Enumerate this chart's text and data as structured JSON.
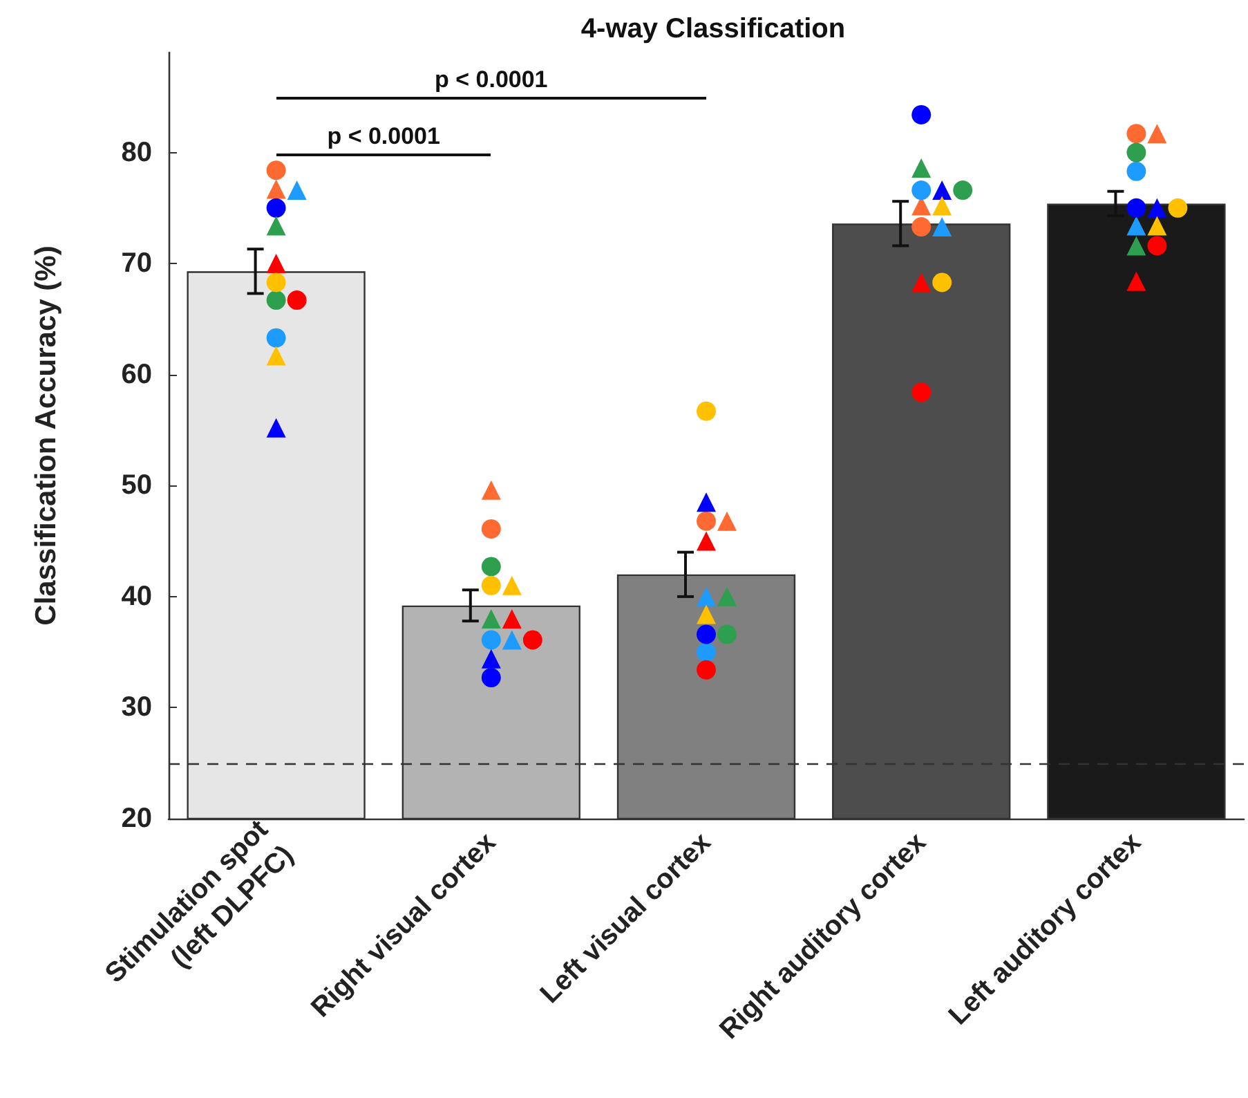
{
  "chart_data": {
    "type": "bar",
    "title": "4-way Classification",
    "ylabel": "Classification Accuracy (%)",
    "categories": [
      "Stimulation spot\n(left DLPFC)",
      "Right visual cortex",
      "Left visual cortex",
      "Right auditory cortex",
      "Left auditory cortex"
    ],
    "ylim": [
      20,
      89
    ],
    "yticks": [
      20,
      30,
      40,
      50,
      60,
      70,
      80
    ],
    "annotations": [
      "p < 0.0001",
      "p < 0.0001"
    ],
    "ref_lines": [
      {
        "axis": "y",
        "value": 25,
        "color": "#333333",
        "line_style": "dashed"
      }
    ],
    "series": [
      {
        "type": "bar",
        "values": [
          69.3,
          39.2,
          42.0,
          73.6,
          75.4
        ],
        "errors": [
          2.0,
          1.4,
          2.0,
          2.0,
          1.1
        ],
        "colors": [
          "#e6e6e6",
          "#b3b3b3",
          "#808080",
          "#4d4d4d",
          "#1a1a1a"
        ]
      },
      {
        "type": "scatter",
        "marker": "circle",
        "color": "#ff6a33",
        "x": [
          "Stimulation spot\n(left DLPFC)",
          "Right visual cortex",
          "Left visual cortex",
          "Right auditory cortex",
          "Left auditory cortex"
        ],
        "values": [
          78.4,
          46.1,
          46.8,
          73.3,
          81.7
        ]
      },
      {
        "type": "scatter",
        "marker": "triangle",
        "color": "#ff6a33",
        "x": [
          "Stimulation spot\n(left DLPFC)",
          "Right visual cortex",
          "Left visual cortex",
          "Right auditory cortex",
          "Left auditory cortex"
        ],
        "values": [
          76.7,
          49.6,
          46.8,
          75.2,
          81.7
        ]
      },
      {
        "type": "scatter",
        "marker": "circle",
        "color": "#1e9bff",
        "x": [
          "Stimulation spot\n(left DLPFC)",
          "Right visual cortex",
          "Left visual cortex",
          "Right auditory cortex",
          "Left auditory cortex"
        ],
        "values": [
          63.3,
          36.1,
          35.0,
          76.6,
          78.3
        ]
      },
      {
        "type": "scatter",
        "marker": "triangle",
        "color": "#1e9bff",
        "x": [
          "Stimulation spot\n(left DLPFC)",
          "Right visual cortex",
          "Left visual cortex",
          "Right auditory cortex",
          "Left auditory cortex"
        ],
        "values": [
          76.6,
          36.1,
          40.0,
          73.3,
          73.4
        ]
      },
      {
        "type": "scatter",
        "marker": "circle",
        "color": "#0000ff",
        "x": [
          "Stimulation spot\n(left DLPFC)",
          "Right visual cortex",
          "Left visual cortex",
          "Right auditory cortex",
          "Left auditory cortex"
        ],
        "values": [
          75.0,
          32.7,
          36.6,
          83.4,
          75.0
        ]
      },
      {
        "type": "scatter",
        "marker": "triangle",
        "color": "#0000ff",
        "x": [
          "Stimulation spot\n(left DLPFC)",
          "Right visual cortex",
          "Left visual cortex",
          "Right auditory cortex",
          "Left auditory cortex"
        ],
        "values": [
          55.2,
          34.4,
          48.5,
          76.6,
          75.0
        ]
      },
      {
        "type": "scatter",
        "marker": "circle",
        "color": "#2e9e4f",
        "x": [
          "Stimulation spot\n(left DLPFC)",
          "Right visual cortex",
          "Left visual cortex",
          "Right auditory cortex",
          "Left auditory cortex"
        ],
        "values": [
          66.7,
          42.7,
          36.6,
          76.6,
          80.0
        ]
      },
      {
        "type": "scatter",
        "marker": "triangle",
        "color": "#2e9e4f",
        "x": [
          "Stimulation spot\n(left DLPFC)",
          "Right visual cortex",
          "Left visual cortex",
          "Right auditory cortex",
          "Left auditory cortex"
        ],
        "values": [
          73.4,
          38.0,
          40.0,
          78.6,
          71.6
        ]
      },
      {
        "type": "scatter",
        "marker": "circle",
        "color": "#ff0000",
        "x": [
          "Stimulation spot\n(left DLPFC)",
          "Right visual cortex",
          "Left visual cortex",
          "Right auditory cortex",
          "Left auditory cortex"
        ],
        "values": [
          66.7,
          36.1,
          33.4,
          58.4,
          71.6
        ]
      },
      {
        "type": "scatter",
        "marker": "triangle",
        "color": "#ff0000",
        "x": [
          "Stimulation spot\n(left DLPFC)",
          "Right visual cortex",
          "Left visual cortex",
          "Right auditory cortex",
          "Left auditory cortex"
        ],
        "values": [
          70.0,
          38.0,
          45.0,
          68.3,
          68.4
        ]
      },
      {
        "type": "scatter",
        "marker": "circle",
        "color": "#ffc000",
        "x": [
          "Stimulation spot\n(left DLPFC)",
          "Right visual cortex",
          "Left visual cortex",
          "Right auditory cortex",
          "Left auditory cortex"
        ],
        "values": [
          68.3,
          41.0,
          56.7,
          68.3,
          75.0
        ]
      },
      {
        "type": "scatter",
        "marker": "triangle",
        "color": "#ffc000",
        "x": [
          "Stimulation spot\n(left DLPFC)",
          "Right visual cortex",
          "Left visual cortex",
          "Right auditory cortex",
          "Left auditory cortex"
        ],
        "values": [
          61.7,
          41.0,
          38.4,
          75.2,
          73.4
        ]
      }
    ]
  }
}
